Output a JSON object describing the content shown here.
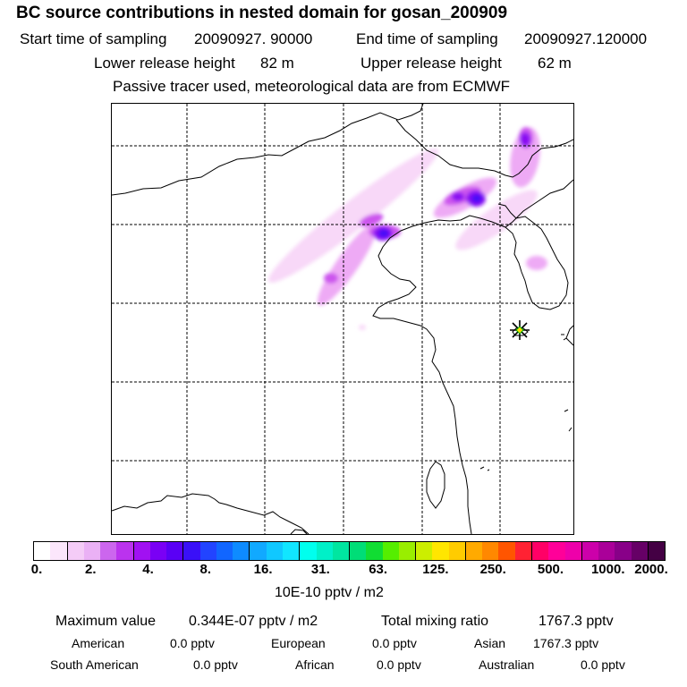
{
  "header": {
    "title": "BC  source contributions in nested domain for gosan_200909",
    "start_label": "Start time of sampling",
    "start_value": "20090927. 90000",
    "end_label": "End time of sampling",
    "end_value": "20090927.120000",
    "lower_label": "Lower release height",
    "lower_value": "82 m",
    "upper_label": "Upper release height",
    "upper_value": "62 m",
    "note": "Passive tracer used, meteorological data are from ECMWF"
  },
  "colorbar": {
    "ticks": [
      "0.",
      "2.",
      "4.",
      "8.",
      "16.",
      "31.",
      "63.",
      "125.",
      "250.",
      "500.",
      "1000.",
      "2000."
    ],
    "colors": [
      "#ffffff",
      "#fbe6fb",
      "#f4ccf7",
      "#eab1f5",
      "#cc66ee",
      "#bb33ee",
      "#a111f2",
      "#7a00f5",
      "#5a00f5",
      "#3a10f8",
      "#2244ff",
      "#1166ff",
      "#0e8bff",
      "#11a9ff",
      "#10c8ff",
      "#11e6ff",
      "#00ffee",
      "#00f0c8",
      "#00e6a0",
      "#00dd77",
      "#11dd33",
      "#55ee00",
      "#99ee00",
      "#ccee00",
      "#ffe600",
      "#ffcc00",
      "#ffaa00",
      "#ff8800",
      "#ff5500",
      "#ff2233",
      "#ff0066",
      "#ff0099",
      "#ee00aa",
      "#cc00aa",
      "#aa0099",
      "#880088",
      "#660066",
      "#440044"
    ],
    "units": "10E-10 pptv / m2"
  },
  "stats": {
    "max_label": "Maximum value",
    "max_value": "0.344E-07 pptv / m2",
    "total_label": "Total mixing ratio",
    "total_value": "1767.3 pptv",
    "regions": [
      {
        "name": "American",
        "value": "0.0 pptv"
      },
      {
        "name": "European",
        "value": "0.0 pptv"
      },
      {
        "name": "Asian",
        "value": "1767.3 pptv"
      },
      {
        "name": "South American",
        "value": "0.0 pptv"
      },
      {
        "name": "African",
        "value": "0.0 pptv"
      },
      {
        "name": "Australian",
        "value": "0.0 pptv"
      }
    ]
  },
  "map": {
    "receptor_marker": "star-marker-icon",
    "plume_colors": [
      "#f8d8f8",
      "#eeaaf5",
      "#cc55ee",
      "#8a11f2",
      "#4a10f8"
    ]
  }
}
